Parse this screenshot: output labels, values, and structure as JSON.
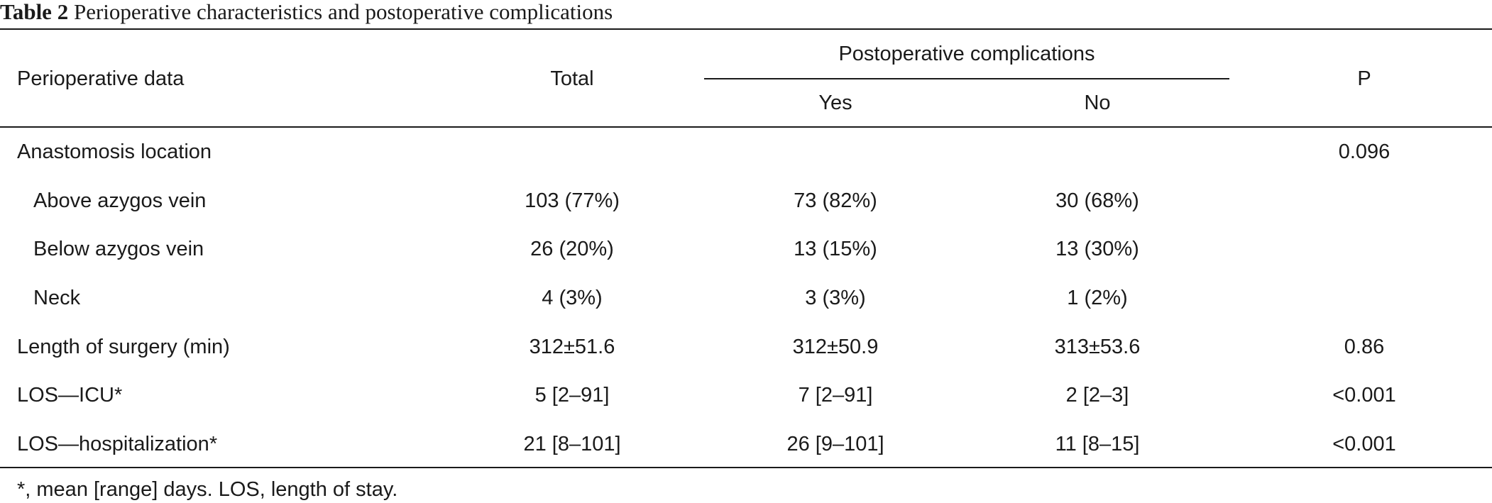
{
  "caption": {
    "label": "Table 2",
    "title": "Perioperative characteristics and postoperative complications"
  },
  "header": {
    "col_data": "Perioperative data",
    "col_total": "Total",
    "group": "Postoperative complications",
    "col_yes": "Yes",
    "col_no": "No",
    "col_p": "P"
  },
  "rows": [
    {
      "label": "Anastomosis location",
      "total": "",
      "yes": "",
      "no": "",
      "p": "0.096"
    },
    {
      "label": "Above azygos vein",
      "total": "103 (77%)",
      "yes": "73 (82%)",
      "no": "30 (68%)",
      "p": ""
    },
    {
      "label": "Below azygos vein",
      "total": "26 (20%)",
      "yes": "13 (15%)",
      "no": "13 (30%)",
      "p": ""
    },
    {
      "label": "Neck",
      "total": "4 (3%)",
      "yes": "3 (3%)",
      "no": "1 (2%)",
      "p": ""
    },
    {
      "label": "Length of surgery (min)",
      "total": "312±51.6",
      "yes": "312±50.9",
      "no": "313±53.6",
      "p": "0.86"
    },
    {
      "label": "LOS—ICU*",
      "total": "5 [2–91]",
      "yes": "7 [2–91]",
      "no": "2 [2–3]",
      "p": "<0.001"
    },
    {
      "label": "LOS—hospitalization*",
      "total": "21 [8–101]",
      "yes": "26 [9–101]",
      "no": "11 [8–15]",
      "p": "<0.001"
    }
  ],
  "footnote": "*, mean [range] days. LOS, length of stay."
}
